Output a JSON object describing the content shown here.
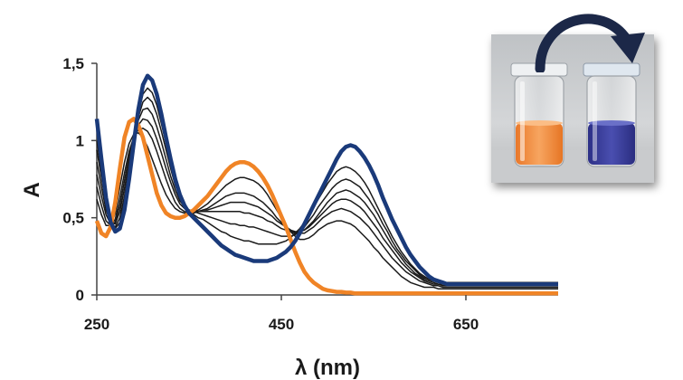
{
  "chart_data": {
    "type": "line",
    "xlabel": "λ (nm)",
    "ylabel": "A",
    "xlim": [
      250,
      750
    ],
    "ylim": [
      0,
      1.5
    ],
    "x_ticks": [
      {
        "value": 250,
        "label": "250"
      },
      {
        "value": 450,
        "label": "450"
      },
      {
        "value": 650,
        "label": "650"
      }
    ],
    "y_ticks": [
      {
        "value": 0,
        "label": "0"
      },
      {
        "value": 0.5,
        "label": "0,5"
      },
      {
        "value": 1,
        "label": "1"
      },
      {
        "value": 1.5,
        "label": "1,5"
      }
    ],
    "grid": false,
    "legend": "none",
    "x": [
      250,
      255,
      260,
      265,
      270,
      275,
      280,
      285,
      290,
      295,
      300,
      305,
      310,
      315,
      320,
      325,
      330,
      335,
      340,
      345,
      350,
      355,
      360,
      365,
      370,
      375,
      380,
      385,
      390,
      395,
      400,
      405,
      410,
      415,
      420,
      425,
      430,
      435,
      440,
      445,
      450,
      455,
      460,
      465,
      470,
      475,
      480,
      485,
      490,
      495,
      500,
      505,
      510,
      515,
      520,
      525,
      530,
      535,
      540,
      545,
      550,
      555,
      560,
      565,
      570,
      575,
      580,
      585,
      590,
      595,
      600,
      605,
      610,
      615,
      620,
      625,
      630,
      635,
      640,
      645,
      650,
      655,
      660,
      665,
      670,
      675,
      680,
      685,
      690,
      695,
      700,
      705,
      710,
      715,
      720,
      725,
      730,
      735,
      740,
      745,
      750
    ],
    "series": [
      {
        "name": "",
        "values": [
          0.48,
          0.4,
          0.38,
          0.44,
          0.6,
          0.82,
          1.02,
          1.12,
          1.14,
          1.1,
          1.02,
          0.9,
          0.78,
          0.66,
          0.58,
          0.53,
          0.51,
          0.5,
          0.5,
          0.51,
          0.53,
          0.55,
          0.58,
          0.61,
          0.64,
          0.68,
          0.72,
          0.76,
          0.8,
          0.83,
          0.85,
          0.86,
          0.86,
          0.85,
          0.83,
          0.8,
          0.76,
          0.71,
          0.65,
          0.58,
          0.51,
          0.44,
          0.36,
          0.28,
          0.21,
          0.15,
          0.11,
          0.08,
          0.06,
          0.04,
          0.03,
          0.025,
          0.02,
          0.02,
          0.015,
          0.015,
          0.01,
          0.01,
          0.01,
          0.01,
          0.01,
          0.01,
          0.01,
          0.01,
          0.01,
          0.01,
          0.01,
          0.01,
          0.01,
          0.01,
          0.01,
          0.01,
          0.01,
          0.01,
          0.01,
          0.01,
          0.01,
          0.01,
          0.01,
          0.01,
          0.01,
          0.01,
          0.01,
          0.01,
          0.01,
          0.01,
          0.01,
          0.01,
          0.01,
          0.01,
          0.01,
          0.01,
          0.01,
          0.01,
          0.01,
          0.01,
          0.01,
          0.01,
          0.01,
          0.01,
          0.01
        ]
      },
      {
        "name": "",
        "values": [
          0.62,
          0.52,
          0.45,
          0.45,
          0.53,
          0.7,
          0.86,
          0.98,
          1.04,
          1.05,
          1.02,
          0.96,
          0.88,
          0.8,
          0.72,
          0.65,
          0.6,
          0.56,
          0.54,
          0.53,
          0.53,
          0.54,
          0.55,
          0.57,
          0.59,
          0.62,
          0.65,
          0.68,
          0.71,
          0.73,
          0.75,
          0.76,
          0.76,
          0.75,
          0.74,
          0.72,
          0.69,
          0.65,
          0.6,
          0.55,
          0.5,
          0.45,
          0.41,
          0.38,
          0.36,
          0.36,
          0.37,
          0.39,
          0.42,
          0.44,
          0.46,
          0.47,
          0.48,
          0.48,
          0.47,
          0.46,
          0.44,
          0.41,
          0.38,
          0.35,
          0.31,
          0.28,
          0.24,
          0.21,
          0.18,
          0.15,
          0.12,
          0.1,
          0.08,
          0.07,
          0.06,
          0.05,
          0.05,
          0.05,
          0.04,
          0.04,
          0.04,
          0.04,
          0.04,
          0.04,
          0.04,
          0.04,
          0.04,
          0.04,
          0.04,
          0.04,
          0.04,
          0.04,
          0.04,
          0.04,
          0.04,
          0.04,
          0.04,
          0.04,
          0.04,
          0.04,
          0.04,
          0.04,
          0.04,
          0.04,
          0.04
        ]
      },
      {
        "name": "",
        "values": [
          0.7,
          0.58,
          0.48,
          0.45,
          0.49,
          0.63,
          0.79,
          0.93,
          1.02,
          1.07,
          1.08,
          1.06,
          1.01,
          0.93,
          0.84,
          0.75,
          0.67,
          0.6,
          0.56,
          0.54,
          0.53,
          0.53,
          0.54,
          0.55,
          0.56,
          0.58,
          0.6,
          0.62,
          0.64,
          0.65,
          0.66,
          0.66,
          0.66,
          0.65,
          0.64,
          0.62,
          0.6,
          0.57,
          0.54,
          0.5,
          0.47,
          0.44,
          0.42,
          0.4,
          0.4,
          0.4,
          0.42,
          0.44,
          0.47,
          0.5,
          0.52,
          0.54,
          0.55,
          0.56,
          0.55,
          0.54,
          0.52,
          0.5,
          0.47,
          0.44,
          0.4,
          0.36,
          0.32,
          0.28,
          0.24,
          0.21,
          0.18,
          0.15,
          0.13,
          0.11,
          0.09,
          0.08,
          0.07,
          0.06,
          0.06,
          0.05,
          0.05,
          0.05,
          0.05,
          0.05,
          0.05,
          0.05,
          0.05,
          0.05,
          0.05,
          0.05,
          0.05,
          0.05,
          0.05,
          0.05,
          0.05,
          0.05,
          0.05,
          0.05,
          0.05,
          0.05,
          0.05,
          0.05,
          0.05,
          0.05,
          0.05
        ]
      },
      {
        "name": "",
        "values": [
          0.78,
          0.64,
          0.52,
          0.46,
          0.47,
          0.58,
          0.74,
          0.9,
          1.02,
          1.1,
          1.14,
          1.13,
          1.09,
          1.01,
          0.92,
          0.82,
          0.73,
          0.65,
          0.59,
          0.56,
          0.54,
          0.54,
          0.54,
          0.55,
          0.55,
          0.56,
          0.57,
          0.58,
          0.59,
          0.6,
          0.6,
          0.6,
          0.6,
          0.59,
          0.58,
          0.57,
          0.55,
          0.53,
          0.51,
          0.48,
          0.46,
          0.44,
          0.42,
          0.41,
          0.41,
          0.42,
          0.44,
          0.47,
          0.5,
          0.53,
          0.56,
          0.59,
          0.61,
          0.62,
          0.62,
          0.61,
          0.59,
          0.57,
          0.54,
          0.5,
          0.46,
          0.42,
          0.37,
          0.33,
          0.29,
          0.25,
          0.21,
          0.18,
          0.15,
          0.13,
          0.11,
          0.09,
          0.08,
          0.07,
          0.07,
          0.06,
          0.06,
          0.06,
          0.06,
          0.06,
          0.06,
          0.06,
          0.06,
          0.06,
          0.06,
          0.06,
          0.06,
          0.06,
          0.06,
          0.06,
          0.06,
          0.06,
          0.06,
          0.06,
          0.06,
          0.06,
          0.06,
          0.06,
          0.06,
          0.06,
          0.06
        ]
      },
      {
        "name": "",
        "values": [
          0.86,
          0.7,
          0.55,
          0.47,
          0.46,
          0.54,
          0.69,
          0.86,
          1.01,
          1.13,
          1.2,
          1.21,
          1.17,
          1.09,
          0.99,
          0.88,
          0.77,
          0.68,
          0.61,
          0.57,
          0.55,
          0.54,
          0.54,
          0.54,
          0.54,
          0.54,
          0.54,
          0.54,
          0.54,
          0.54,
          0.54,
          0.54,
          0.53,
          0.53,
          0.52,
          0.51,
          0.5,
          0.48,
          0.47,
          0.45,
          0.43,
          0.42,
          0.41,
          0.4,
          0.41,
          0.42,
          0.45,
          0.48,
          0.52,
          0.56,
          0.6,
          0.63,
          0.66,
          0.67,
          0.68,
          0.67,
          0.65,
          0.63,
          0.6,
          0.56,
          0.52,
          0.47,
          0.42,
          0.37,
          0.32,
          0.28,
          0.24,
          0.2,
          0.17,
          0.14,
          0.12,
          0.1,
          0.09,
          0.08,
          0.07,
          0.07,
          0.07,
          0.07,
          0.07,
          0.07,
          0.07,
          0.07,
          0.07,
          0.07,
          0.07,
          0.07,
          0.07,
          0.07,
          0.07,
          0.07,
          0.07,
          0.07,
          0.07,
          0.07,
          0.07,
          0.07,
          0.07,
          0.07,
          0.07,
          0.07,
          0.07
        ]
      },
      {
        "name": "",
        "values": [
          0.94,
          0.76,
          0.58,
          0.47,
          0.44,
          0.5,
          0.64,
          0.82,
          1.0,
          1.15,
          1.25,
          1.28,
          1.25,
          1.17,
          1.06,
          0.94,
          0.82,
          0.71,
          0.63,
          0.58,
          0.55,
          0.54,
          0.53,
          0.52,
          0.51,
          0.5,
          0.49,
          0.48,
          0.47,
          0.46,
          0.46,
          0.45,
          0.45,
          0.44,
          0.44,
          0.43,
          0.42,
          0.41,
          0.4,
          0.39,
          0.38,
          0.38,
          0.38,
          0.39,
          0.41,
          0.44,
          0.48,
          0.52,
          0.57,
          0.61,
          0.65,
          0.69,
          0.72,
          0.74,
          0.75,
          0.74,
          0.72,
          0.7,
          0.66,
          0.62,
          0.57,
          0.52,
          0.46,
          0.41,
          0.35,
          0.3,
          0.26,
          0.22,
          0.19,
          0.16,
          0.13,
          0.11,
          0.1,
          0.09,
          0.08,
          0.08,
          0.08,
          0.08,
          0.08,
          0.08,
          0.08,
          0.08,
          0.08,
          0.08,
          0.08,
          0.08,
          0.08,
          0.08,
          0.08,
          0.08,
          0.08,
          0.08,
          0.08,
          0.08,
          0.08,
          0.08,
          0.08,
          0.08,
          0.08,
          0.08,
          0.08
        ]
      },
      {
        "name": "",
        "values": [
          1.0,
          0.8,
          0.6,
          0.47,
          0.43,
          0.47,
          0.6,
          0.79,
          0.99,
          1.17,
          1.3,
          1.34,
          1.31,
          1.23,
          1.11,
          0.98,
          0.85,
          0.73,
          0.64,
          0.58,
          0.54,
          0.52,
          0.5,
          0.49,
          0.47,
          0.45,
          0.43,
          0.41,
          0.4,
          0.38,
          0.37,
          0.36,
          0.35,
          0.35,
          0.34,
          0.33,
          0.33,
          0.33,
          0.33,
          0.33,
          0.34,
          0.35,
          0.37,
          0.4,
          0.43,
          0.47,
          0.52,
          0.57,
          0.62,
          0.67,
          0.72,
          0.76,
          0.8,
          0.82,
          0.83,
          0.82,
          0.8,
          0.77,
          0.73,
          0.68,
          0.62,
          0.56,
          0.5,
          0.44,
          0.38,
          0.33,
          0.28,
          0.24,
          0.2,
          0.17,
          0.14,
          0.12,
          0.1,
          0.09,
          0.09,
          0.08,
          0.08,
          0.08,
          0.08,
          0.08,
          0.08,
          0.08,
          0.08,
          0.08,
          0.08,
          0.08,
          0.08,
          0.08,
          0.08,
          0.08,
          0.08,
          0.08,
          0.08,
          0.08,
          0.08,
          0.08,
          0.08,
          0.08,
          0.08,
          0.08,
          0.08
        ]
      },
      {
        "name": "",
        "values": [
          1.14,
          0.88,
          0.63,
          0.47,
          0.41,
          0.43,
          0.55,
          0.75,
          0.98,
          1.2,
          1.36,
          1.42,
          1.39,
          1.3,
          1.17,
          1.02,
          0.88,
          0.75,
          0.65,
          0.58,
          0.53,
          0.5,
          0.47,
          0.44,
          0.41,
          0.38,
          0.35,
          0.32,
          0.3,
          0.28,
          0.26,
          0.25,
          0.24,
          0.23,
          0.22,
          0.22,
          0.22,
          0.22,
          0.23,
          0.24,
          0.26,
          0.28,
          0.31,
          0.35,
          0.4,
          0.46,
          0.52,
          0.58,
          0.64,
          0.7,
          0.76,
          0.82,
          0.88,
          0.93,
          0.96,
          0.97,
          0.96,
          0.93,
          0.89,
          0.84,
          0.78,
          0.71,
          0.63,
          0.56,
          0.49,
          0.43,
          0.37,
          0.31,
          0.26,
          0.22,
          0.18,
          0.15,
          0.12,
          0.1,
          0.09,
          0.08,
          0.07,
          0.07,
          0.07,
          0.07,
          0.07,
          0.07,
          0.07,
          0.07,
          0.07,
          0.07,
          0.07,
          0.07,
          0.07,
          0.07,
          0.07,
          0.07,
          0.07,
          0.07,
          0.07,
          0.07,
          0.07,
          0.07,
          0.07,
          0.07,
          0.07
        ]
      }
    ],
    "colors": {
      "orange_series": "#f08426",
      "blue_series": "#1a3a7a",
      "intermediate": "#1a1a1a",
      "axis": "#444444"
    }
  },
  "inset": {
    "description_hidden": true,
    "vial_left_color": "#f38a3a",
    "vial_right_color": "#3b3f9a",
    "arrow_color": "#1c2848"
  }
}
